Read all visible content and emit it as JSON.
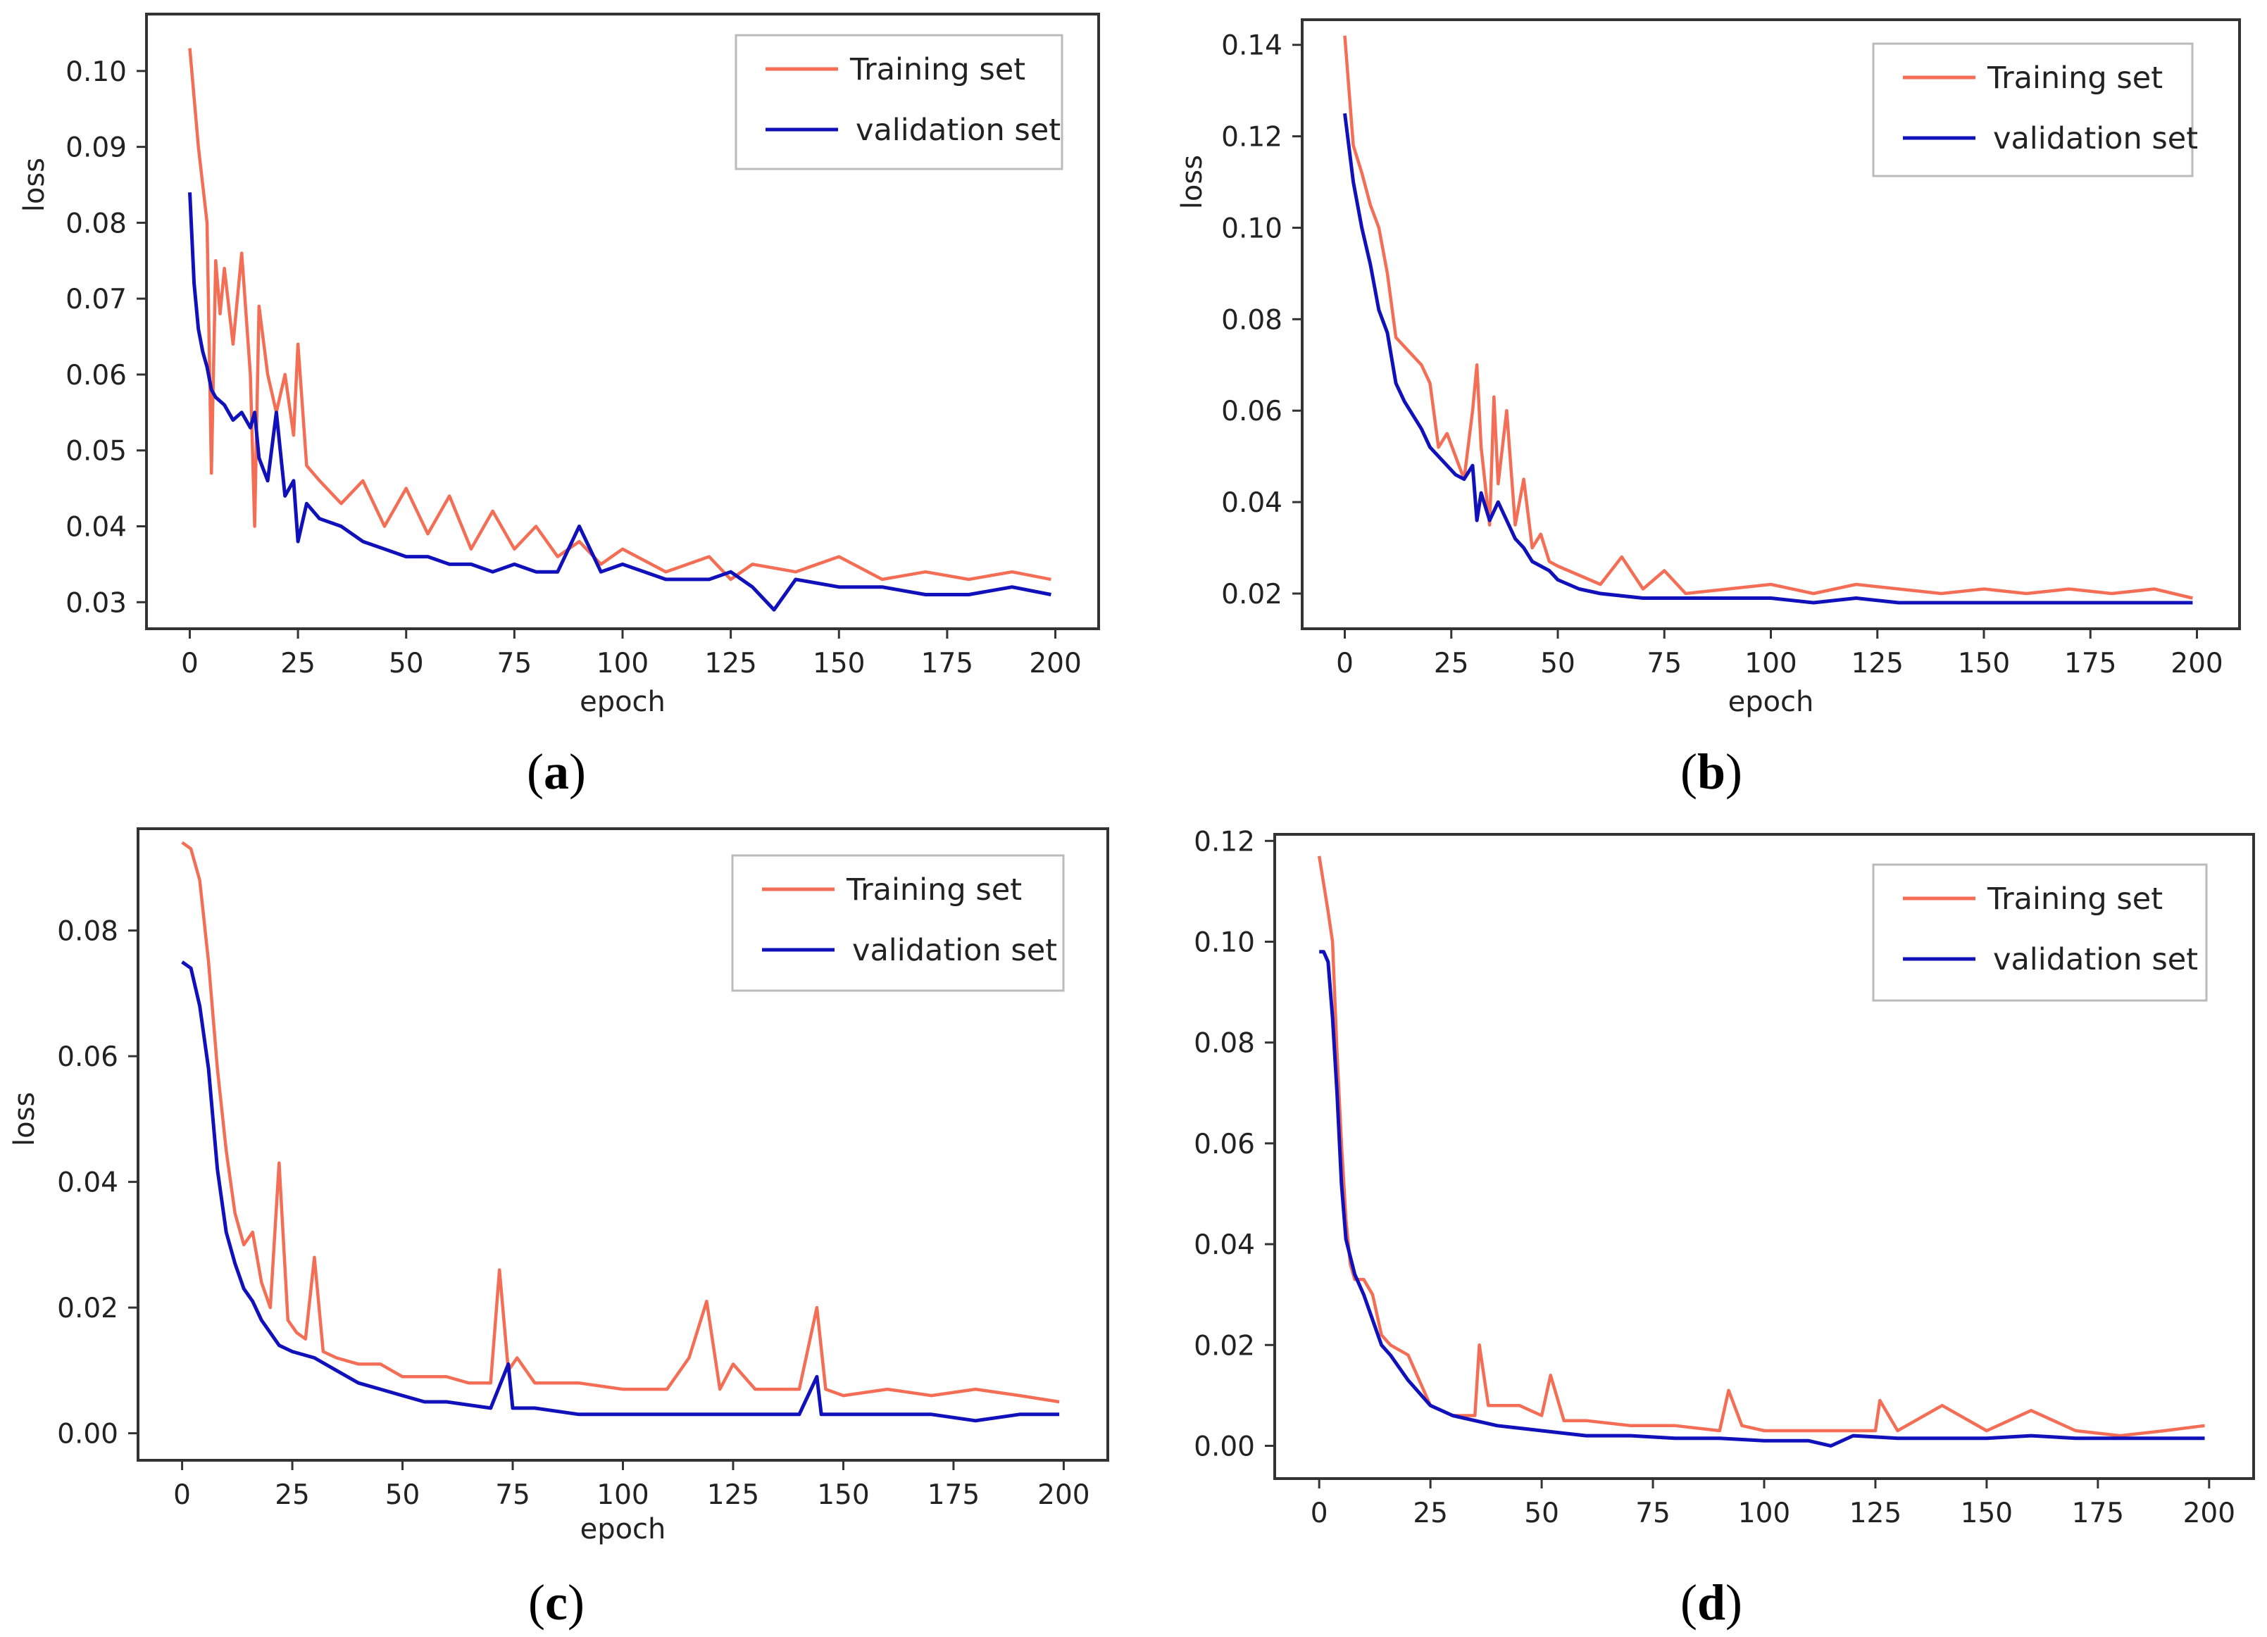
{
  "colors": {
    "training": "#f46d55",
    "validation": "#1111bb",
    "frame": "#333333"
  },
  "chart_data": [
    {
      "type": "line",
      "panel": "(a)",
      "caption_open": "(",
      "caption_letter": "a",
      "caption_close": ")",
      "xlabel": "epoch",
      "ylabel": "loss",
      "xlim": [
        -10,
        210
      ],
      "ylim": [
        0.0265,
        0.1075
      ],
      "xticks": [
        0,
        25,
        50,
        75,
        100,
        125,
        150,
        175,
        200
      ],
      "xtick_labels": [
        "0",
        "25",
        "50",
        "75",
        "100",
        "125",
        "150",
        "175",
        "200"
      ],
      "yticks": [
        0.03,
        0.04,
        0.05,
        0.06,
        0.07,
        0.08,
        0.09,
        0.1
      ],
      "ytick_labels": [
        "0.03",
        "0.04",
        "0.05",
        "0.06",
        "0.07",
        "0.08",
        "0.09",
        "0.10"
      ],
      "legend": {
        "position": "top-right",
        "entries": [
          "Training set",
          "validation set"
        ]
      },
      "series": [
        {
          "name": "Training set",
          "x": [
            0,
            2,
            4,
            5,
            6,
            7,
            8,
            10,
            12,
            14,
            15,
            16,
            18,
            20,
            22,
            24,
            25,
            27,
            30,
            35,
            40,
            45,
            50,
            55,
            60,
            65,
            70,
            75,
            80,
            85,
            90,
            95,
            100,
            110,
            120,
            125,
            130,
            140,
            150,
            160,
            170,
            180,
            190,
            199
          ],
          "y": [
            0.103,
            0.09,
            0.08,
            0.047,
            0.075,
            0.068,
            0.074,
            0.064,
            0.076,
            0.06,
            0.04,
            0.069,
            0.06,
            0.055,
            0.06,
            0.052,
            0.064,
            0.048,
            0.046,
            0.043,
            0.046,
            0.04,
            0.045,
            0.039,
            0.044,
            0.037,
            0.042,
            0.037,
            0.04,
            0.036,
            0.038,
            0.035,
            0.037,
            0.034,
            0.036,
            0.033,
            0.035,
            0.034,
            0.036,
            0.033,
            0.034,
            0.033,
            0.034,
            0.033
          ]
        },
        {
          "name": "validation set",
          "x": [
            0,
            1,
            2,
            3,
            4,
            5,
            6,
            8,
            10,
            12,
            14,
            15,
            16,
            18,
            20,
            22,
            24,
            25,
            27,
            30,
            35,
            40,
            45,
            50,
            55,
            60,
            65,
            70,
            75,
            80,
            85,
            90,
            95,
            100,
            110,
            120,
            125,
            130,
            135,
            140,
            150,
            160,
            170,
            180,
            190,
            199
          ],
          "y": [
            0.084,
            0.072,
            0.066,
            0.063,
            0.061,
            0.058,
            0.057,
            0.056,
            0.054,
            0.055,
            0.053,
            0.055,
            0.049,
            0.046,
            0.055,
            0.044,
            0.046,
            0.038,
            0.043,
            0.041,
            0.04,
            0.038,
            0.037,
            0.036,
            0.036,
            0.035,
            0.035,
            0.034,
            0.035,
            0.034,
            0.034,
            0.04,
            0.034,
            0.035,
            0.033,
            0.033,
            0.034,
            0.032,
            0.029,
            0.033,
            0.032,
            0.032,
            0.031,
            0.031,
            0.032,
            0.031
          ]
        }
      ]
    },
    {
      "type": "line",
      "panel": "(b)",
      "caption_open": "(",
      "caption_letter": "b",
      "caption_close": ")",
      "xlabel": "epoch",
      "ylabel": "loss",
      "xlim": [
        -10,
        210
      ],
      "ylim": [
        0.0123,
        0.1455
      ],
      "xticks": [
        0,
        25,
        50,
        75,
        100,
        125,
        150,
        175,
        200
      ],
      "xtick_labels": [
        "0",
        "25",
        "50",
        "75",
        "100",
        "125",
        "150",
        "175",
        "200"
      ],
      "yticks": [
        0.02,
        0.04,
        0.06,
        0.08,
        0.1,
        0.12,
        0.14
      ],
      "ytick_labels": [
        "0.02",
        "0.04",
        "0.06",
        "0.08",
        "0.10",
        "0.12",
        "0.14"
      ],
      "legend": {
        "position": "top-right",
        "entries": [
          "Training set",
          "validation set"
        ]
      },
      "series": [
        {
          "name": "Training set",
          "x": [
            0,
            2,
            4,
            6,
            8,
            10,
            12,
            14,
            16,
            18,
            20,
            22,
            24,
            26,
            28,
            30,
            31,
            32,
            34,
            35,
            36,
            38,
            40,
            42,
            44,
            46,
            48,
            50,
            55,
            60,
            65,
            70,
            75,
            80,
            90,
            100,
            110,
            120,
            130,
            140,
            150,
            160,
            170,
            180,
            190,
            199
          ],
          "y": [
            0.142,
            0.118,
            0.112,
            0.105,
            0.1,
            0.09,
            0.076,
            0.074,
            0.072,
            0.07,
            0.066,
            0.052,
            0.055,
            0.05,
            0.045,
            0.06,
            0.07,
            0.052,
            0.035,
            0.063,
            0.044,
            0.06,
            0.035,
            0.045,
            0.03,
            0.033,
            0.027,
            0.026,
            0.024,
            0.022,
            0.028,
            0.021,
            0.025,
            0.02,
            0.021,
            0.022,
            0.02,
            0.022,
            0.021,
            0.02,
            0.021,
            0.02,
            0.021,
            0.02,
            0.021,
            0.019
          ]
        },
        {
          "name": "validation set",
          "x": [
            0,
            2,
            4,
            6,
            8,
            10,
            12,
            14,
            16,
            18,
            20,
            22,
            24,
            26,
            28,
            30,
            31,
            32,
            34,
            36,
            38,
            40,
            42,
            44,
            46,
            48,
            50,
            55,
            60,
            70,
            80,
            90,
            100,
            110,
            120,
            130,
            140,
            150,
            160,
            170,
            180,
            190,
            199
          ],
          "y": [
            0.125,
            0.11,
            0.1,
            0.092,
            0.082,
            0.077,
            0.066,
            0.062,
            0.059,
            0.056,
            0.052,
            0.05,
            0.048,
            0.046,
            0.045,
            0.048,
            0.036,
            0.042,
            0.036,
            0.04,
            0.036,
            0.032,
            0.03,
            0.027,
            0.026,
            0.025,
            0.023,
            0.021,
            0.02,
            0.019,
            0.019,
            0.019,
            0.019,
            0.018,
            0.019,
            0.018,
            0.018,
            0.018,
            0.018,
            0.018,
            0.018,
            0.018,
            0.018
          ]
        }
      ]
    },
    {
      "type": "line",
      "panel": "(c)",
      "caption_open": "(",
      "caption_letter": "c",
      "caption_close": ")",
      "xlabel": "epoch",
      "ylabel": "loss",
      "xlim": [
        -10,
        210
      ],
      "ylim": [
        -0.0043,
        0.0962
      ],
      "xticks": [
        0,
        25,
        50,
        75,
        100,
        125,
        150,
        175,
        200
      ],
      "xtick_labels": [
        "0",
        "25",
        "50",
        "75",
        "100",
        "125",
        "150",
        "175",
        "200"
      ],
      "yticks": [
        0.0,
        0.02,
        0.04,
        0.06,
        0.08
      ],
      "ytick_labels": [
        "0.00",
        "0.02",
        "0.04",
        "0.06",
        "0.08"
      ],
      "legend": {
        "position": "top-right",
        "entries": [
          "Training set",
          "validation set"
        ]
      },
      "series": [
        {
          "name": "Training set",
          "x": [
            0,
            2,
            4,
            6,
            8,
            10,
            12,
            14,
            16,
            18,
            20,
            22,
            24,
            26,
            28,
            30,
            32,
            35,
            40,
            45,
            50,
            55,
            60,
            65,
            70,
            72,
            74,
            76,
            80,
            90,
            100,
            110,
            115,
            119,
            122,
            125,
            130,
            140,
            144,
            146,
            150,
            160,
            170,
            180,
            190,
            199
          ],
          "y": [
            0.094,
            0.093,
            0.088,
            0.075,
            0.058,
            0.045,
            0.035,
            0.03,
            0.032,
            0.024,
            0.02,
            0.043,
            0.018,
            0.016,
            0.015,
            0.028,
            0.013,
            0.012,
            0.011,
            0.011,
            0.009,
            0.009,
            0.009,
            0.008,
            0.008,
            0.026,
            0.01,
            0.012,
            0.008,
            0.008,
            0.007,
            0.007,
            0.012,
            0.021,
            0.007,
            0.011,
            0.007,
            0.007,
            0.02,
            0.007,
            0.006,
            0.007,
            0.006,
            0.007,
            0.006,
            0.005
          ]
        },
        {
          "name": "validation set",
          "x": [
            0,
            2,
            4,
            6,
            8,
            10,
            12,
            14,
            16,
            18,
            20,
            22,
            25,
            30,
            35,
            40,
            45,
            50,
            55,
            60,
            70,
            74,
            75,
            76,
            80,
            90,
            100,
            110,
            120,
            130,
            140,
            144,
            145,
            150,
            160,
            170,
            180,
            190,
            199
          ],
          "y": [
            0.075,
            0.074,
            0.068,
            0.058,
            0.042,
            0.032,
            0.027,
            0.023,
            0.021,
            0.018,
            0.016,
            0.014,
            0.013,
            0.012,
            0.01,
            0.008,
            0.007,
            0.006,
            0.005,
            0.005,
            0.004,
            0.011,
            0.004,
            0.004,
            0.004,
            0.003,
            0.003,
            0.003,
            0.003,
            0.003,
            0.003,
            0.009,
            0.003,
            0.003,
            0.003,
            0.003,
            0.002,
            0.003,
            0.003
          ]
        }
      ]
    },
    {
      "type": "line",
      "panel": "(d)",
      "caption_open": "(",
      "caption_letter": "d",
      "caption_close": ")",
      "xlabel": "",
      "ylabel": "",
      "xlim": [
        -10,
        210
      ],
      "ylim": [
        -0.0065,
        0.1213
      ],
      "xticks": [
        0,
        25,
        50,
        75,
        100,
        125,
        150,
        175,
        200
      ],
      "xtick_labels": [
        "0",
        "25",
        "50",
        "75",
        "100",
        "125",
        "150",
        "175",
        "200"
      ],
      "yticks": [
        0.0,
        0.02,
        0.04,
        0.06,
        0.08,
        0.1,
        0.12
      ],
      "ytick_labels": [
        "0.00",
        "0.02",
        "0.04",
        "0.06",
        "0.08",
        "0.10",
        "0.12"
      ],
      "legend": {
        "position": "top-right",
        "entries": [
          "Training set",
          "validation set"
        ]
      },
      "series": [
        {
          "name": "Training set",
          "x": [
            0,
            2,
            3,
            4,
            5,
            6,
            7,
            8,
            10,
            12,
            14,
            16,
            20,
            25,
            30,
            35,
            36,
            38,
            45,
            50,
            52,
            55,
            60,
            70,
            80,
            90,
            92,
            95,
            100,
            110,
            120,
            125,
            126,
            130,
            140,
            150,
            160,
            170,
            180,
            190,
            199
          ],
          "y": [
            0.117,
            0.106,
            0.1,
            0.078,
            0.06,
            0.045,
            0.036,
            0.033,
            0.033,
            0.03,
            0.022,
            0.02,
            0.018,
            0.008,
            0.006,
            0.006,
            0.02,
            0.008,
            0.008,
            0.006,
            0.014,
            0.005,
            0.005,
            0.004,
            0.004,
            0.003,
            0.011,
            0.004,
            0.003,
            0.003,
            0.003,
            0.003,
            0.009,
            0.003,
            0.008,
            0.003,
            0.007,
            0.003,
            0.002,
            0.003,
            0.004
          ]
        },
        {
          "name": "validation set",
          "x": [
            0,
            1,
            2,
            3,
            4,
            5,
            6,
            8,
            10,
            12,
            14,
            16,
            20,
            25,
            30,
            40,
            50,
            60,
            70,
            80,
            90,
            100,
            110,
            115,
            120,
            130,
            140,
            150,
            160,
            170,
            180,
            190,
            199
          ],
          "y": [
            0.098,
            0.098,
            0.096,
            0.085,
            0.07,
            0.052,
            0.041,
            0.034,
            0.03,
            0.025,
            0.02,
            0.018,
            0.013,
            0.008,
            0.006,
            0.004,
            0.003,
            0.002,
            0.002,
            0.0015,
            0.0015,
            0.001,
            0.001,
            0.0,
            0.002,
            0.0015,
            0.0015,
            0.0015,
            0.002,
            0.0015,
            0.0015,
            0.0015,
            0.0015
          ]
        }
      ]
    }
  ]
}
